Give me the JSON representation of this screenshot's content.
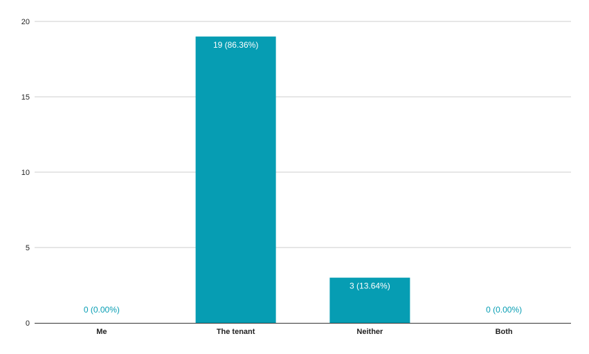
{
  "chart_data": {
    "type": "bar",
    "categories": [
      "Me",
      "The tenant",
      "Neither",
      "Both"
    ],
    "values": [
      0,
      19,
      3,
      0
    ],
    "data_labels": [
      "0 (0.00%)",
      "19 (86.36%)",
      "3 (13.64%)",
      "0 (0.00%)"
    ],
    "yticks": [
      0,
      5,
      10,
      15,
      20
    ],
    "ylim": [
      0,
      20
    ],
    "grid": true,
    "bar_color": "#069db3",
    "label_inside_color": "#ffffff",
    "label_outside_color": "#069db3"
  }
}
